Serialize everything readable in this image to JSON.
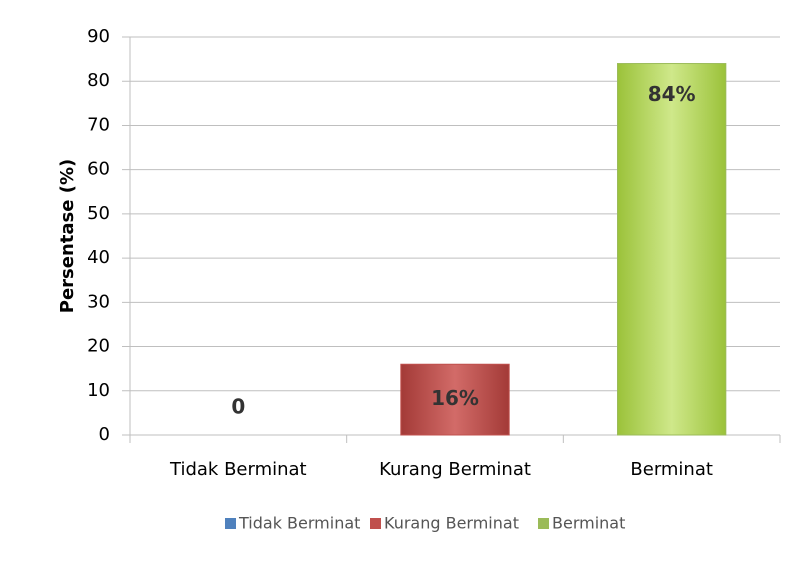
{
  "chart_data": {
    "type": "bar",
    "y_label": "Persentase (%)",
    "categories": [
      "Tidak Berminat",
      "Kurang Berminat",
      "Berminat"
    ],
    "values": [
      0,
      16,
      84
    ],
    "value_labels": [
      "0",
      "16%",
      "84%"
    ],
    "colors": [
      "#4f81bd",
      "#c0504d",
      "#9bbb59"
    ],
    "ylim": [
      0,
      90
    ],
    "yticks": [
      0,
      10,
      20,
      30,
      40,
      50,
      60,
      70,
      80,
      90
    ],
    "grid": true,
    "legend": "bottom"
  }
}
